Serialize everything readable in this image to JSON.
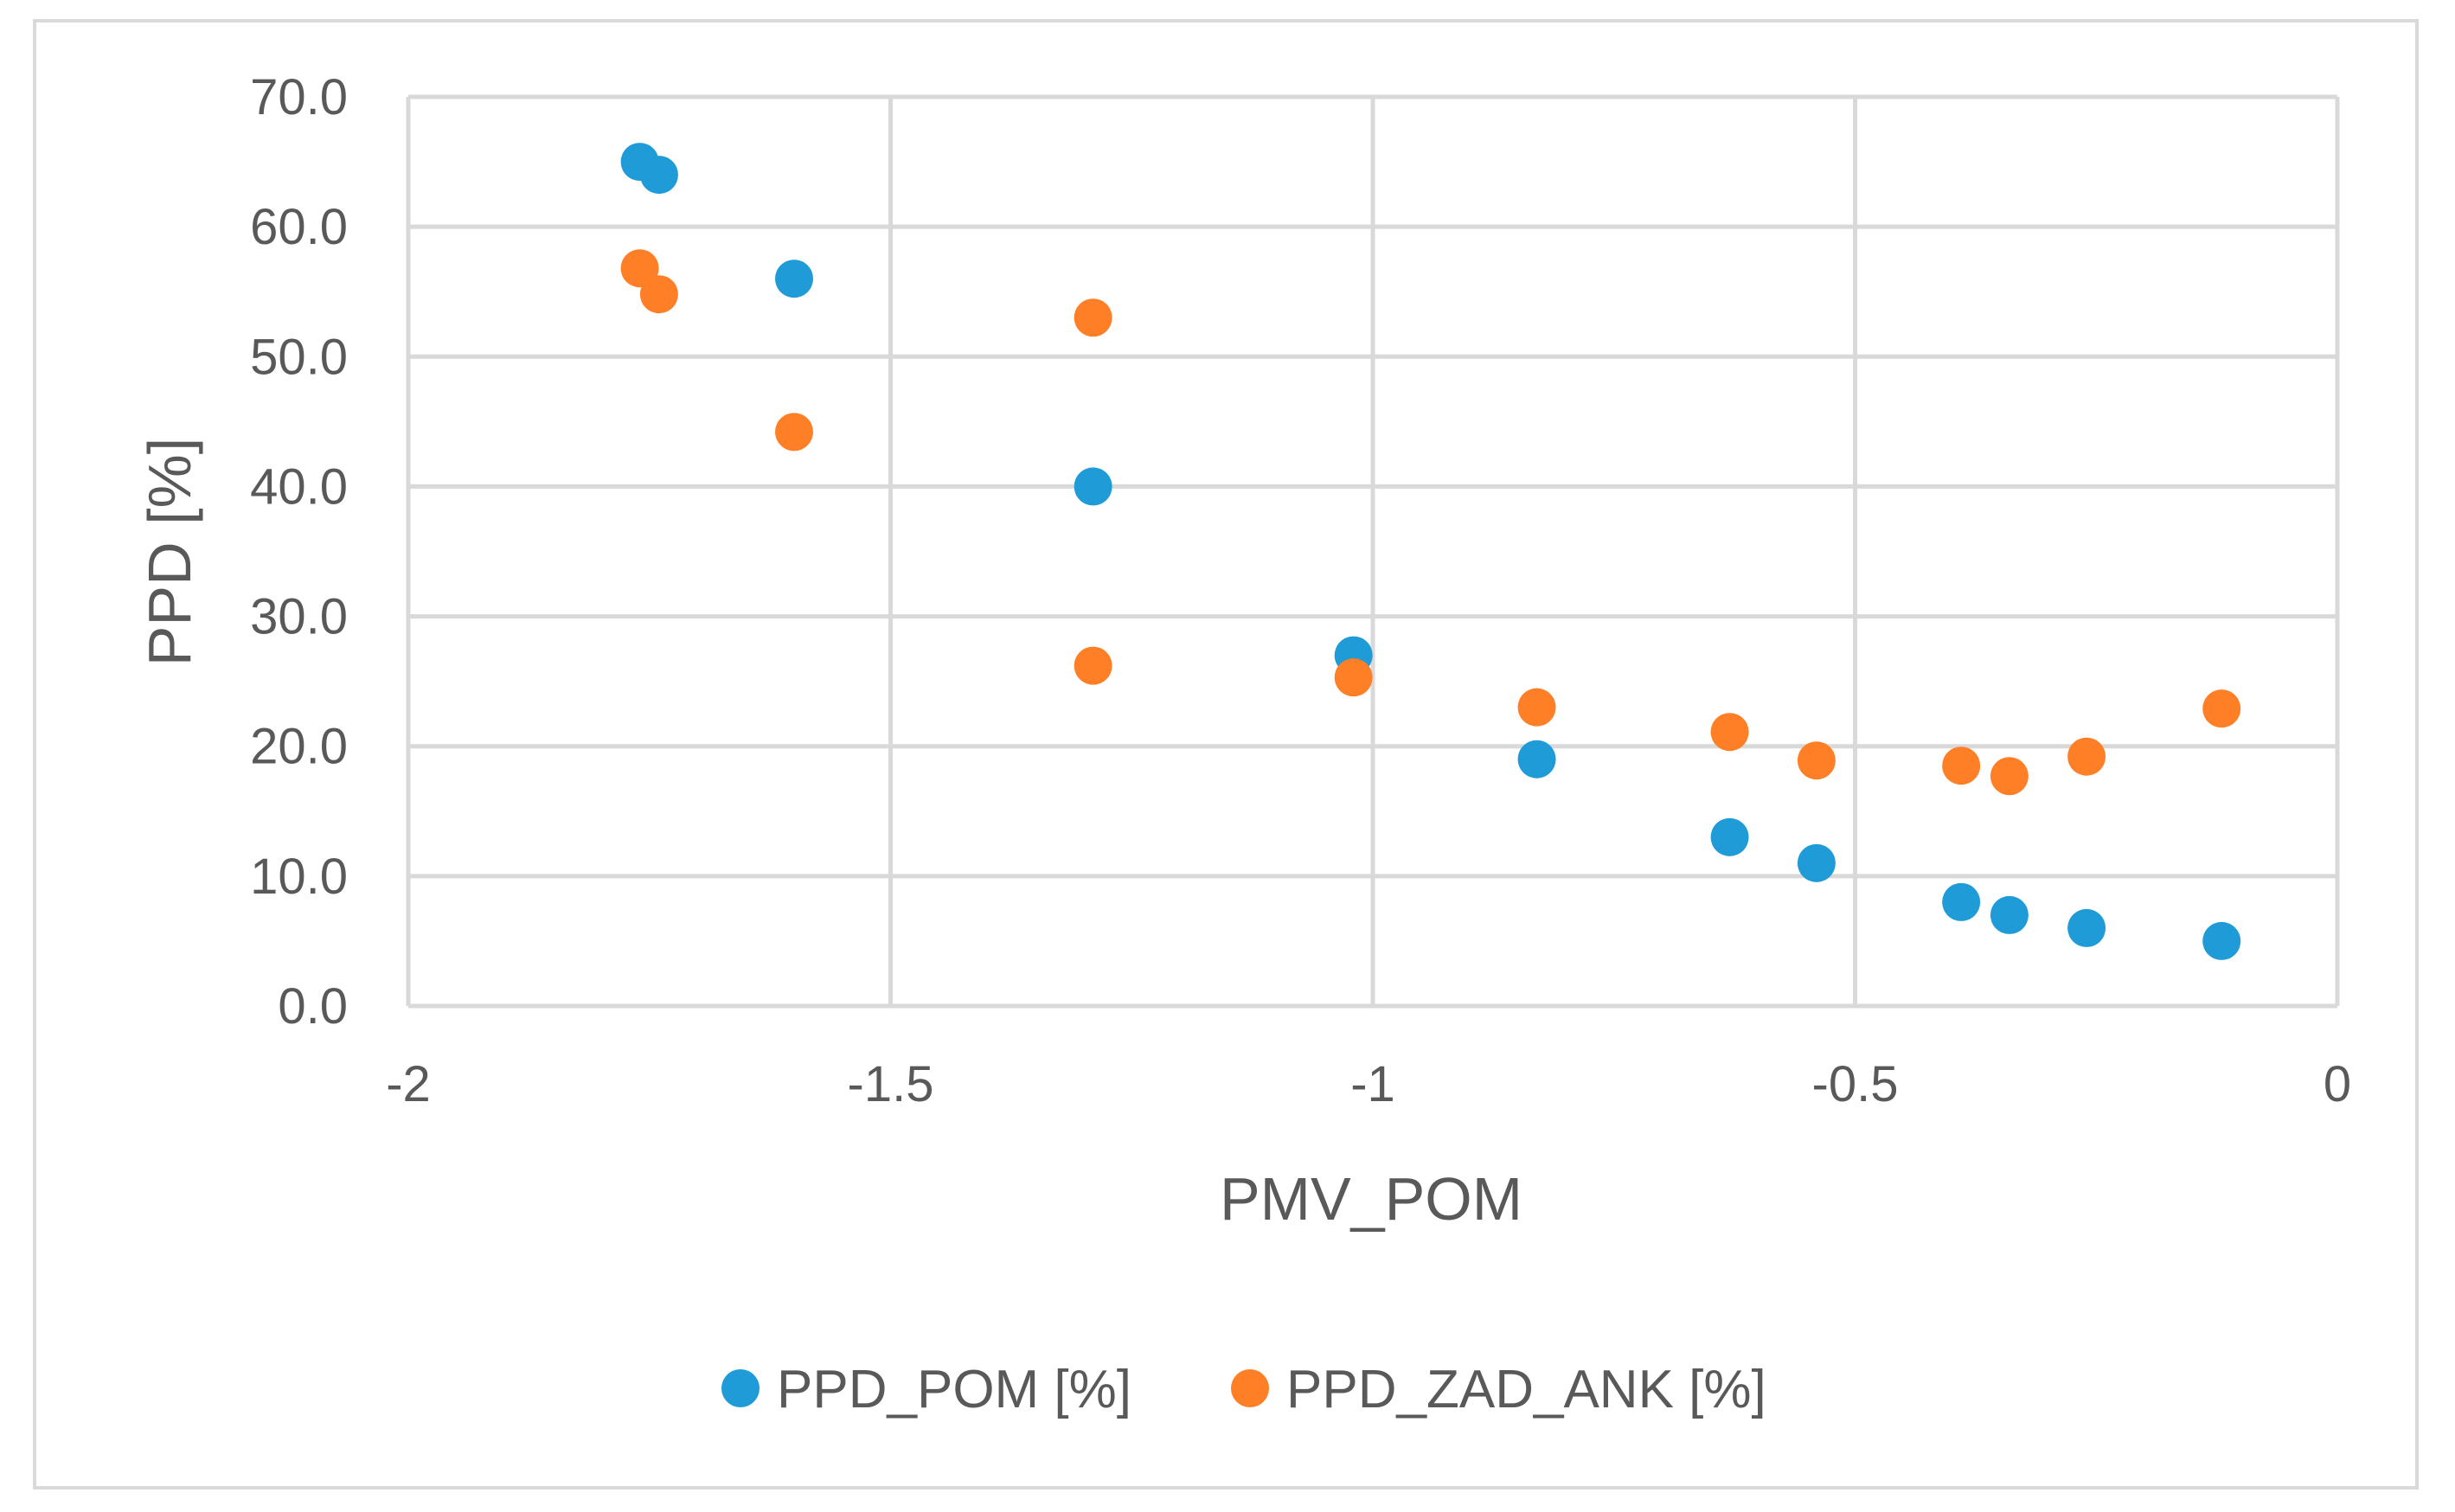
{
  "chart_data": {
    "type": "scatter",
    "title": "",
    "xlabel": "PMV_POM",
    "ylabel": "PPD [%]",
    "xlim": [
      -2,
      0
    ],
    "ylim": [
      0,
      70
    ],
    "x_ticks": [
      -2,
      -1.5,
      -1,
      -0.5,
      0
    ],
    "x_tick_labels": [
      "-2",
      "-1.5",
      "-1",
      "-0.5",
      "0"
    ],
    "y_ticks": [
      0,
      10,
      20,
      30,
      40,
      50,
      60,
      70
    ],
    "y_tick_labels": [
      "0.0",
      "10.0",
      "20.0",
      "30.0",
      "40.0",
      "50.0",
      "60.0",
      "70.0"
    ],
    "grid": true,
    "legend_position": "bottom",
    "series": [
      {
        "name": "PPD_POM [%]",
        "color": "#1f9bd7",
        "points": [
          [
            -1.76,
            65.0
          ],
          [
            -1.74,
            64.0
          ],
          [
            -1.6,
            56.0
          ],
          [
            -1.29,
            40.0
          ],
          [
            -1.02,
            27.0
          ],
          [
            -0.83,
            19.0
          ],
          [
            -0.63,
            13.0
          ],
          [
            -0.54,
            11.0
          ],
          [
            -0.39,
            8.0
          ],
          [
            -0.34,
            7.0
          ],
          [
            -0.26,
            6.0
          ],
          [
            -0.12,
            5.0
          ]
        ]
      },
      {
        "name": "PPD_ZAD_ANK [%]",
        "color": "#ff7f27",
        "points": [
          [
            -1.76,
            56.8
          ],
          [
            -1.74,
            54.8
          ],
          [
            -1.6,
            44.2
          ],
          [
            -1.29,
            53.0
          ],
          [
            -1.29,
            26.2
          ],
          [
            -1.02,
            25.3
          ],
          [
            -0.83,
            23.0
          ],
          [
            -0.63,
            21.1
          ],
          [
            -0.54,
            18.9
          ],
          [
            -0.39,
            18.5
          ],
          [
            -0.34,
            17.7
          ],
          [
            -0.26,
            19.2
          ],
          [
            -0.12,
            22.9
          ]
        ]
      }
    ]
  }
}
